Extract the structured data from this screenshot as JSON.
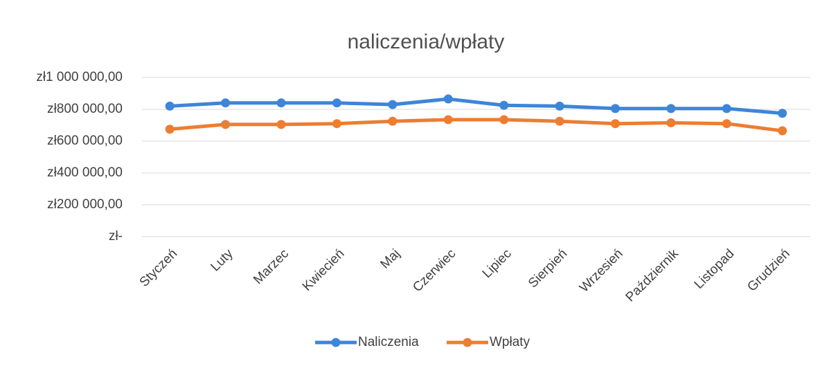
{
  "chart_data": {
    "type": "line",
    "title": "naliczenia/wpłaty",
    "categories": [
      "Styczeń",
      "Luty",
      "Marzec",
      "Kwiecień",
      "Maj",
      "Czerwiec",
      "Lipiec",
      "Sierpień",
      "Wrzesień",
      "Październik",
      "Listopad",
      "Grudzień"
    ],
    "series": [
      {
        "name": "Naliczenia",
        "color": "#3d85d9",
        "values": [
          820000,
          840000,
          840000,
          840000,
          830000,
          865000,
          825000,
          820000,
          805000,
          805000,
          805000,
          775000
        ]
      },
      {
        "name": "Wpłaty",
        "color": "#ed7d31",
        "values": [
          675000,
          705000,
          705000,
          710000,
          725000,
          735000,
          735000,
          725000,
          710000,
          715000,
          710000,
          665000
        ]
      }
    ],
    "ylim": [
      0,
      1000000
    ],
    "yticks": [
      {
        "value": 0,
        "label": "zł-"
      },
      {
        "value": 200000,
        "label": "zł200 000,00"
      },
      {
        "value": 400000,
        "label": "zł400 000,00"
      },
      {
        "value": 600000,
        "label": "zł600 000,00"
      },
      {
        "value": 800000,
        "label": "zł800 000,00"
      },
      {
        "value": 1000000,
        "label": "zł1 000 000,00"
      }
    ],
    "grid": true,
    "legend": "bottom"
  }
}
